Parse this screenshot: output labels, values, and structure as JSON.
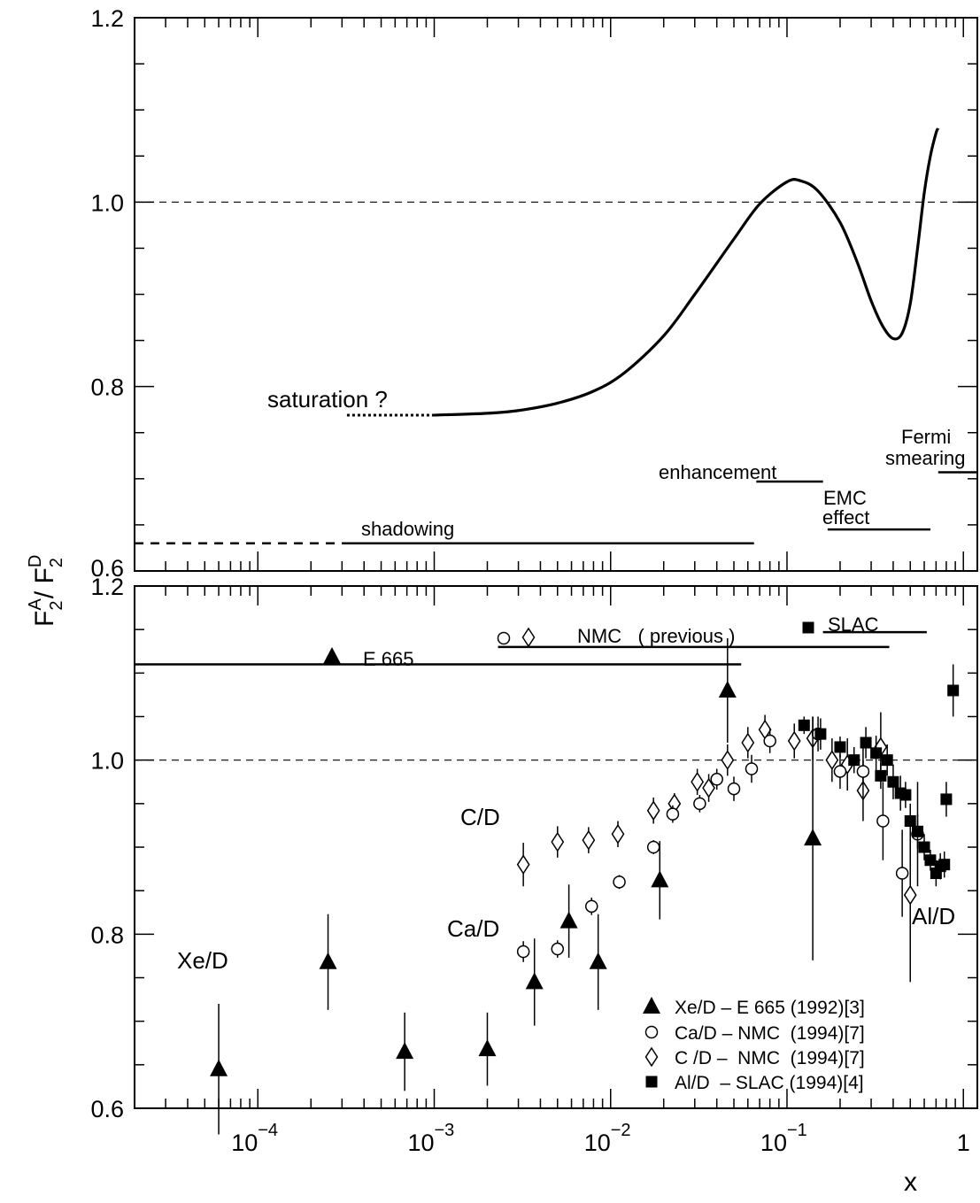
{
  "chart_data": [
    {
      "type": "line",
      "panel": "top",
      "x_scale": "log",
      "xlim": [
        2e-05,
        1.2
      ],
      "ylim": [
        0.6,
        1.2
      ],
      "y_ticks": [
        "0.8",
        "1.0",
        "1.2"
      ],
      "y_tick_values": [
        0.8,
        1.0,
        1.2
      ],
      "y_tick_zero_label": "0.6",
      "reference_line": {
        "y": 1.0,
        "style": "dashed"
      },
      "curve": {
        "x": [
          0.001,
          0.002,
          0.003,
          0.005,
          0.008,
          0.012,
          0.02,
          0.03,
          0.05,
          0.07,
          0.1,
          0.12,
          0.15,
          0.2,
          0.25,
          0.3,
          0.35,
          0.4,
          0.45,
          0.5,
          0.55,
          0.6,
          0.65,
          0.7,
          0.72
        ],
        "y": [
          0.769,
          0.771,
          0.774,
          0.782,
          0.795,
          0.815,
          0.855,
          0.9,
          0.96,
          0.998,
          1.022,
          1.023,
          1.012,
          0.978,
          0.935,
          0.893,
          0.865,
          0.852,
          0.858,
          0.89,
          0.95,
          1.01,
          1.05,
          1.075,
          1.08
        ]
      },
      "saturation_extension": {
        "x": [
          0.00032,
          0.001
        ],
        "y": [
          0.769,
          0.769
        ],
        "style": "dotted"
      },
      "annotations": [
        "saturation ?"
      ],
      "regions": [
        {
          "label": "shadowing",
          "x": [
            0.00032,
            0.065
          ],
          "y": 0.63,
          "dashed_extension_from": 2e-05
        },
        {
          "label": "enhancement",
          "x": [
            0.067,
            0.16
          ],
          "y": 0.697
        },
        {
          "label_lines": [
            "EMC",
            "effect"
          ],
          "x": [
            0.17,
            0.65
          ],
          "y": 0.645
        },
        {
          "label_lines": [
            "Fermi",
            "smearing"
          ],
          "x": [
            0.72,
            1.2
          ],
          "y": 0.707
        }
      ]
    },
    {
      "type": "scatter",
      "panel": "bottom",
      "x_scale": "log",
      "xlim": [
        2e-05,
        1.2
      ],
      "ylim": [
        0.6,
        1.2
      ],
      "xlabel": "x",
      "ylabel": "F₂^A / F₂^D",
      "y_ticks": [
        "0.6",
        "0.8",
        "1.0",
        "1.2"
      ],
      "y_tick_values": [
        0.6,
        0.8,
        1.0,
        1.2
      ],
      "x_ticks": [
        {
          "value": 0.0001,
          "base": "10",
          "exp": "−4"
        },
        {
          "value": 0.001,
          "base": "10",
          "exp": "−3"
        },
        {
          "value": 0.01,
          "base": "10",
          "exp": "−2"
        },
        {
          "value": 0.1,
          "base": "10",
          "exp": "−1"
        },
        {
          "value": 1,
          "base": "1",
          "exp": ""
        }
      ],
      "reference_line": {
        "y": 1.0,
        "style": "dashed"
      },
      "annotations": [
        "C/D",
        "Ca/D",
        "Xe/D",
        "Al/D"
      ],
      "series": [
        {
          "name": "Xe/D – E 665 (1992)[3]",
          "marker": "filled-triangle",
          "x": [
            6e-05,
            0.00025,
            0.00068,
            0.002,
            0.0037,
            0.0058,
            0.0085,
            0.019,
            0.046,
            0.14
          ],
          "y": [
            0.645,
            0.768,
            0.665,
            0.668,
            0.745,
            0.815,
            0.768,
            0.862,
            1.08,
            0.91
          ],
          "err": [
            0.075,
            0.055,
            0.045,
            0.042,
            0.05,
            0.042,
            0.055,
            0.045,
            0.06,
            0.14
          ]
        },
        {
          "name": "Ca/D – NMC  (1994)[7]",
          "marker": "open-circle",
          "x": [
            0.0032,
            0.005,
            0.0078,
            0.0112,
            0.0175,
            0.0225,
            0.032,
            0.04,
            0.05,
            0.063,
            0.08,
            0.15,
            0.2,
            0.27,
            0.35,
            0.45,
            0.55
          ],
          "y": [
            0.78,
            0.783,
            0.832,
            0.86,
            0.9,
            0.938,
            0.95,
            0.978,
            0.967,
            0.99,
            1.022,
            1.03,
            0.987,
            0.987,
            0.93,
            0.87,
            0.915
          ],
          "err": [
            0.012,
            0.01,
            0.01,
            0.008,
            0.008,
            0.01,
            0.01,
            0.012,
            0.014,
            0.016,
            0.014,
            0.02,
            0.02,
            0.03,
            0.045,
            0.05,
            0.06
          ]
        },
        {
          "name": "C /D –  NMC  (1994)[7]",
          "marker": "open-diamond",
          "x": [
            0.0032,
            0.005,
            0.0075,
            0.011,
            0.0175,
            0.023,
            0.031,
            0.036,
            0.046,
            0.06,
            0.075,
            0.11,
            0.14,
            0.18,
            0.22,
            0.27,
            0.34,
            0.5
          ],
          "y": [
            0.88,
            0.906,
            0.908,
            0.915,
            0.942,
            0.95,
            0.975,
            0.968,
            1.0,
            1.02,
            1.035,
            1.022,
            1.025,
            1.0,
            0.995,
            0.965,
            1.015,
            0.845
          ],
          "err": [
            0.025,
            0.018,
            0.015,
            0.015,
            0.015,
            0.012,
            0.015,
            0.016,
            0.018,
            0.018,
            0.017,
            0.02,
            0.025,
            0.025,
            0.03,
            0.035,
            0.04,
            0.1
          ]
        },
        {
          "name": "Al/D  – SLAC (1994)[4]",
          "marker": "filled-square",
          "x": [
            0.125,
            0.155,
            0.2,
            0.24,
            0.28,
            0.32,
            0.34,
            0.37,
            0.4,
            0.44,
            0.47,
            0.5,
            0.55,
            0.6,
            0.65,
            0.7,
            0.74,
            0.78,
            0.8,
            0.875
          ],
          "y": [
            1.04,
            1.03,
            1.015,
            1.0,
            1.02,
            1.008,
            0.982,
            1.0,
            0.975,
            0.962,
            0.96,
            0.93,
            0.918,
            0.9,
            0.885,
            0.87,
            0.878,
            0.88,
            0.955,
            1.08
          ],
          "err": [
            0.01,
            0.018,
            0.012,
            0.015,
            0.018,
            0.02,
            0.015,
            0.018,
            0.02,
            0.02,
            0.015,
            0.02,
            0.02,
            0.015,
            0.012,
            0.015,
            0.015,
            0.015,
            0.02,
            0.03
          ]
        }
      ],
      "ranges": [
        {
          "label": "E 665",
          "x": [
            2e-05,
            0.055
          ],
          "y": 1.11
        },
        {
          "label": "NMC   ( previous )",
          "x": [
            0.0023,
            0.38
          ],
          "y": 1.13
        },
        {
          "label": "SLAC",
          "x": [
            0.16,
            0.62
          ],
          "y": 1.147
        }
      ]
    }
  ]
}
